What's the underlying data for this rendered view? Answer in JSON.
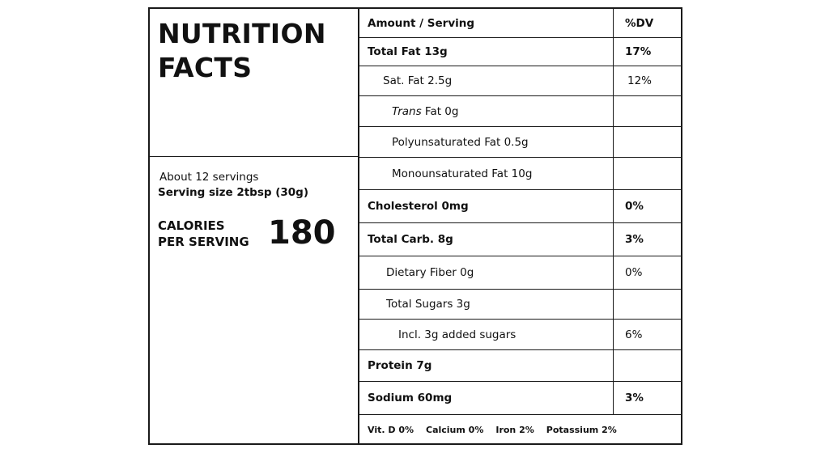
{
  "label": {
    "title": "NUTRITION\nFACTS",
    "servings_per_container": "About 12 servings",
    "serving_size": "Serving size 2tbsp (30g)",
    "calories_label": "CALORIES\nPER SERVING",
    "calories_value": "180"
  },
  "table": {
    "header": {
      "name": "Amount / Serving",
      "dv": "%DV"
    },
    "total_fat": {
      "name": "Total Fat 13g",
      "dv": "17%"
    },
    "sat_fat": {
      "name": "Sat. Fat 2.5g",
      "dv": "12%"
    },
    "trans_fat": {
      "name_italic": "Trans",
      "name_rest": " Fat 0g",
      "dv": ""
    },
    "poly_fat": {
      "name": "Polyunsaturated Fat 0.5g",
      "dv": ""
    },
    "mono_fat": {
      "name": "Monounsaturated Fat 10g",
      "dv": ""
    },
    "cholesterol": {
      "name": "Cholesterol 0mg",
      "dv": "0%"
    },
    "total_carb": {
      "name": "Total Carb. 8g",
      "dv": "3%"
    },
    "fiber": {
      "name": "Dietary Fiber 0g",
      "dv": "0%"
    },
    "total_sugars": {
      "name": "Total Sugars 3g",
      "dv": ""
    },
    "added_sugars": {
      "name": "Incl. 3g added sugars",
      "dv": "6%"
    },
    "protein": {
      "name": "Protein 7g",
      "dv": ""
    },
    "sodium": {
      "name": "Sodium 60mg",
      "dv": "3%"
    }
  },
  "footer": {
    "vitamin_d": "Vit. D 0%",
    "calcium": "Calcium 0%",
    "iron": "Iron 2%",
    "potassium": "Potassium 2%"
  }
}
